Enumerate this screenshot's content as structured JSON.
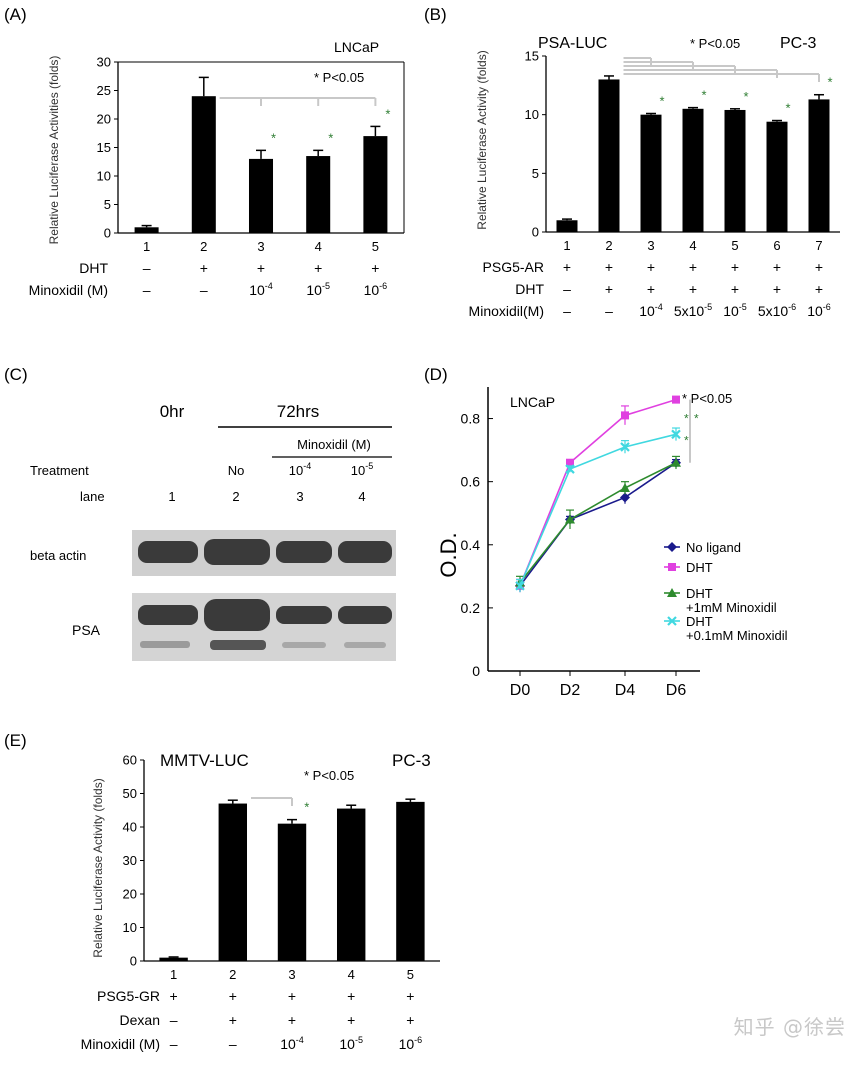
{
  "panels": {
    "A": {
      "tag": "(A)",
      "cell_line": "LNCaP",
      "ylabel": "Relative Luciferase Activities (folds)",
      "pvalue": "* P<0.05",
      "yticks": [
        "0",
        "5",
        "10",
        "15",
        "20",
        "25",
        "30"
      ],
      "rows": [
        {
          "label": "DHT",
          "cells": [
            "–",
            "+",
            "+",
            "+",
            "+"
          ]
        },
        {
          "label": "Minoxidil (M)",
          "cells": [
            "–",
            "–",
            "10",
            "10",
            "10"
          ],
          "sups": [
            "",
            "",
            "-4",
            "-5",
            "-6"
          ]
        }
      ],
      "star": "*"
    },
    "B": {
      "tag": "(B)",
      "reporter": "PSA-LUC",
      "cell_line": "PC-3",
      "ylabel": "Relative Luciferase Activity (folds)",
      "pvalue": "* P<0.05",
      "yticks": [
        "0",
        "5",
        "10",
        "15"
      ],
      "rows": [
        {
          "label": "PSG5-AR",
          "cells": [
            "+",
            "+",
            "+",
            "+",
            "+",
            "+",
            "+"
          ]
        },
        {
          "label": "DHT",
          "cells": [
            "–",
            "+",
            "+",
            "+",
            "+",
            "+",
            "+"
          ]
        },
        {
          "label": "Minoxidil(M)",
          "cells": [
            "–",
            "–",
            "10",
            "5x10",
            "10",
            "5x10",
            "10"
          ],
          "sups": [
            "",
            "",
            "-4",
            "-5",
            "-5",
            "-6",
            "-6"
          ]
        }
      ],
      "star": "*"
    },
    "C": {
      "tag": "(C)",
      "time0": "0hr",
      "time72": "72hrs",
      "minox_header": "Minoxidil (M)",
      "treatment_label": "Treatment",
      "treatments": [
        "",
        "No",
        "10",
        "10"
      ],
      "treatment_sups": [
        "",
        "",
        "-4",
        "-5"
      ],
      "lane_label": "lane",
      "lanes": [
        "1",
        "2",
        "3",
        "4"
      ],
      "blot1": "beta actin",
      "blot2": "PSA"
    },
    "D": {
      "tag": "(D)",
      "cell_line": "LNCaP",
      "pvalue": "* P<0.05",
      "ylabel": "O.D.",
      "yticks": [
        "0",
        "0.2",
        "0.4",
        "0.6",
        "0.8"
      ],
      "star": "*"
    },
    "E": {
      "tag": "(E)",
      "reporter": "MMTV-LUC",
      "cell_line": "PC-3",
      "ylabel": "Relative Luciferase Activity (folds)",
      "pvalue": "* P<0.05",
      "yticks": [
        "0",
        "10",
        "20",
        "30",
        "40",
        "50",
        "60"
      ],
      "rows": [
        {
          "label": "PSG5-GR",
          "cells": [
            "+",
            "+",
            "+",
            "+",
            "+"
          ]
        },
        {
          "label": "Dexan",
          "cells": [
            "–",
            "+",
            "+",
            "+",
            "+"
          ]
        },
        {
          "label": "Minoxidil (M)",
          "cells": [
            "–",
            "–",
            "10",
            "10",
            "10"
          ],
          "sups": [
            "",
            "",
            "-4",
            "-5",
            "-6"
          ]
        }
      ],
      "star": "*"
    }
  },
  "watermark": "知乎 @徐尝",
  "colors": {
    "bar": "#000000",
    "star": "#2e7d32",
    "bracket": "#c8c8c8",
    "no_ligand": "#1a1a8c",
    "dht": "#e040e0",
    "dht_1mm": "#2e8b2e",
    "dht_01mm": "#40d8e0"
  },
  "chart_data": [
    {
      "type": "bar",
      "title": "LNCaP",
      "ylabel": "Relative Luciferase Activities (folds)",
      "ylim": [
        0,
        30
      ],
      "categories": [
        "1",
        "2",
        "3",
        "4",
        "5"
      ],
      "values": [
        1,
        24,
        13,
        13.5,
        17
      ],
      "errors": [
        0.3,
        3.3,
        1.5,
        1.0,
        1.7
      ],
      "significant": [
        false,
        false,
        true,
        true,
        true
      ]
    },
    {
      "type": "bar",
      "title": "PSA-LUC",
      "subtitle": "PC-3",
      "ylabel": "Relative Luciferase Activity (folds)",
      "ylim": [
        0,
        15
      ],
      "categories": [
        "1",
        "2",
        "3",
        "4",
        "5",
        "6",
        "7"
      ],
      "values": [
        1,
        13,
        10,
        10.5,
        10.4,
        9.4,
        11.3
      ],
      "errors": [
        0.1,
        0.3,
        0.1,
        0.1,
        0.1,
        0.1,
        0.4
      ],
      "significant": [
        false,
        false,
        true,
        true,
        true,
        true,
        true
      ]
    },
    {
      "type": "line",
      "title": "LNCaP",
      "ylabel": "O.D.",
      "ylim": [
        0,
        0.8
      ],
      "x": [
        "D0",
        "D2",
        "D4",
        "D6"
      ],
      "legend": "right",
      "series": [
        {
          "name": "No ligand",
          "values": [
            0.27,
            0.48,
            0.55,
            0.66
          ],
          "errors": [
            0.02,
            0.01,
            0.02,
            0.01
          ]
        },
        {
          "name": "DHT",
          "values": [
            0.27,
            0.66,
            0.81,
            0.86
          ],
          "errors": [
            0.02,
            0.01,
            0.03,
            0.01
          ]
        },
        {
          "name": "DHT +1mM Minoxidil",
          "values": [
            0.28,
            0.48,
            0.58,
            0.66
          ],
          "errors": [
            0.02,
            0.03,
            0.02,
            0.02
          ]
        },
        {
          "name": "DHT +0.1mM Minoxidil",
          "values": [
            0.27,
            0.64,
            0.71,
            0.75
          ],
          "errors": [
            0.02,
            0.01,
            0.02,
            0.02
          ]
        }
      ]
    },
    {
      "type": "bar",
      "title": "MMTV-LUC",
      "subtitle": "PC-3",
      "ylabel": "Relative Luciferase Activity (folds)",
      "ylim": [
        0,
        60
      ],
      "categories": [
        "1",
        "2",
        "3",
        "4",
        "5"
      ],
      "values": [
        1,
        47,
        41,
        45.5,
        47.5
      ],
      "errors": [
        0.2,
        1.0,
        1.2,
        1.0,
        0.8
      ],
      "significant": [
        false,
        false,
        true,
        false,
        false
      ]
    }
  ]
}
